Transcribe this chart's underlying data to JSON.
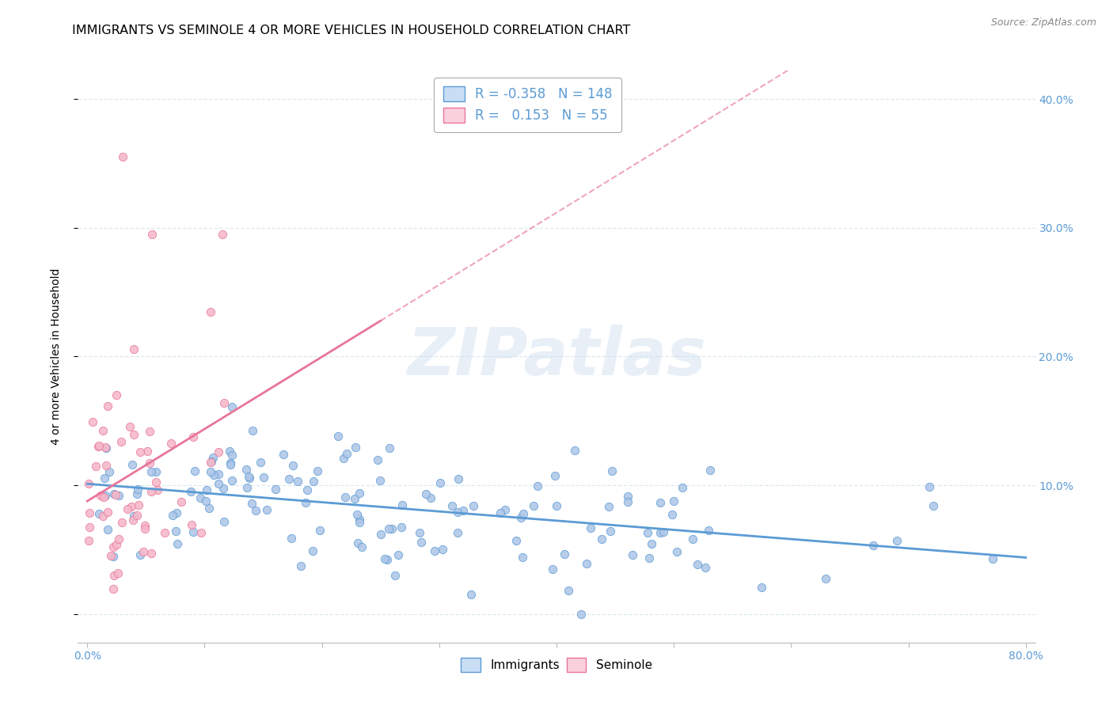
{
  "title": "IMMIGRANTS VS SEMINOLE 4 OR MORE VEHICLES IN HOUSEHOLD CORRELATION CHART",
  "source": "Source: ZipAtlas.com",
  "ylabel": "4 or more Vehicles in Household",
  "watermark": "ZIPatlas",
  "xlim": [
    -0.008,
    0.808
  ],
  "ylim": [
    -0.022,
    0.422
  ],
  "xticks": [
    0.0,
    0.1,
    0.2,
    0.3,
    0.4,
    0.5,
    0.6,
    0.7,
    0.8
  ],
  "xticklabels": [
    "0.0%",
    "",
    "",
    "",
    "",
    "",
    "",
    "",
    "80.0%"
  ],
  "yticks": [
    0.0,
    0.1,
    0.2,
    0.3,
    0.4
  ],
  "immigrants_R": -0.358,
  "immigrants_N": 148,
  "seminole_R": 0.153,
  "seminole_N": 55,
  "immigrants_color": "#aec6e8",
  "seminole_color": "#f5b8c8",
  "immigrants_line_color": "#5b9bd5",
  "seminole_line_color": "#e8759a",
  "legend_box_color_immigrants": "#c9ddf5",
  "legend_box_color_seminole": "#fad0dc",
  "title_fontsize": 11.5,
  "axis_label_fontsize": 10,
  "tick_fontsize": 10,
  "background_color": "#ffffff",
  "grid_color": "#dde8f0",
  "right_tick_color": "#5b9bd5"
}
